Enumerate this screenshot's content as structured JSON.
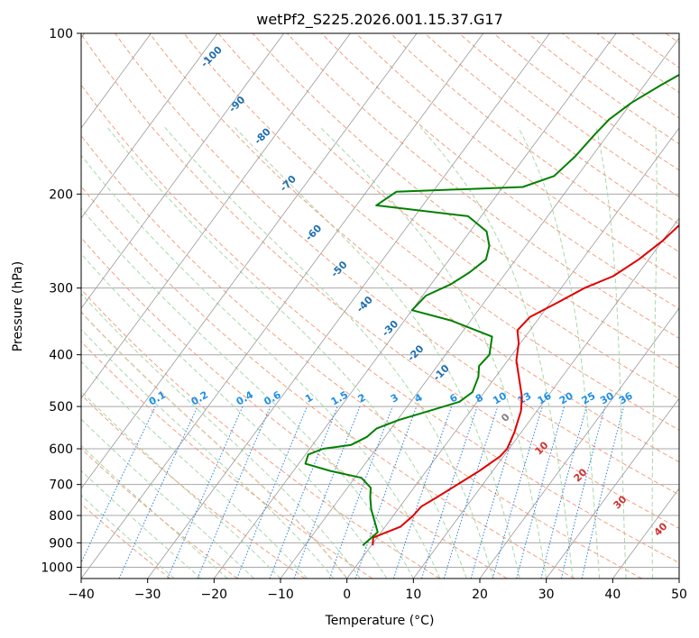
{
  "chart_data": {
    "type": "line",
    "title": "wetPf2_S225.2026.001.15.37.G17",
    "xlabel": "Temperature (°C)",
    "ylabel": "Pressure (hPa)",
    "xlim": [
      -40,
      50
    ],
    "ylim": [
      1050,
      100
    ],
    "y_scale": "log",
    "grid": true,
    "x_ticks": [
      "−40",
      "−30",
      "−20",
      "−10",
      "0",
      "10",
      "20",
      "30",
      "40",
      "50"
    ],
    "y_ticks": [
      "100",
      "200",
      "300",
      "400",
      "500",
      "600",
      "700",
      "800",
      "900",
      "1000"
    ],
    "series": [
      {
        "role": "temperature",
        "color": "#e00000",
        "points": [
          [
            0.2,
            910
          ],
          [
            -0.6,
            880
          ],
          [
            2.3,
            840
          ],
          [
            3.0,
            800
          ],
          [
            3.2,
            770
          ],
          [
            4.5,
            740
          ],
          [
            6.2,
            700
          ],
          [
            8.0,
            660
          ],
          [
            9.5,
            620
          ],
          [
            9.7,
            600
          ],
          [
            9.0,
            560
          ],
          [
            7.6,
            510
          ],
          [
            6.2,
            480
          ],
          [
            3.5,
            440
          ],
          [
            1.3,
            410
          ],
          [
            -0.3,
            380
          ],
          [
            -1.9,
            360
          ],
          [
            -1.5,
            340
          ],
          [
            1.0,
            320
          ],
          [
            3.5,
            300
          ],
          [
            6.5,
            285
          ],
          [
            8.5,
            265
          ],
          [
            10.0,
            245
          ],
          [
            11.0,
            225
          ],
          [
            11.3,
            205
          ],
          [
            10.0,
            185
          ],
          [
            8.5,
            168
          ],
          [
            7.0,
            150
          ],
          [
            6.6,
            135
          ],
          [
            7.5,
            122
          ],
          [
            9.5,
            112
          ],
          [
            12.0,
            104
          ],
          [
            13.5,
            100
          ]
        ]
      },
      {
        "role": "dewpoint",
        "color": "#008000",
        "points": [
          [
            -1.3,
            910
          ],
          [
            -1.0,
            890
          ],
          [
            -0.5,
            860
          ],
          [
            -2.2,
            820
          ],
          [
            -4.0,
            780
          ],
          [
            -5.5,
            740
          ],
          [
            -6.5,
            710
          ],
          [
            -9.0,
            680
          ],
          [
            -14.5,
            660
          ],
          [
            -19.0,
            640
          ],
          [
            -19.6,
            615
          ],
          [
            -18.0,
            600
          ],
          [
            -14.2,
            590
          ],
          [
            -12.7,
            570
          ],
          [
            -12.2,
            550
          ],
          [
            -9.8,
            530
          ],
          [
            -6.3,
            510
          ],
          [
            -2.7,
            490
          ],
          [
            -1.8,
            470
          ],
          [
            -2.6,
            440
          ],
          [
            -3.7,
            420
          ],
          [
            -3.4,
            400
          ],
          [
            -5.0,
            370
          ],
          [
            -13.0,
            345
          ],
          [
            -20.0,
            330
          ],
          [
            -19.5,
            310
          ],
          [
            -17.0,
            295
          ],
          [
            -15.5,
            280
          ],
          [
            -14.5,
            265
          ],
          [
            -15.5,
            250
          ],
          [
            -17.5,
            235
          ],
          [
            -22.0,
            220
          ],
          [
            -37.0,
            210
          ],
          [
            -35.5,
            198
          ],
          [
            -17.0,
            194
          ],
          [
            -13.5,
            185
          ],
          [
            -12.5,
            170
          ],
          [
            -12.0,
            155
          ],
          [
            -11.5,
            145
          ],
          [
            -10.0,
            135
          ],
          [
            -7.5,
            125
          ],
          [
            -4.5,
            115
          ],
          [
            -2.3,
            106
          ],
          [
            -1.0,
            100
          ]
        ]
      }
    ],
    "dry_adiabat_labels": [
      "-100",
      "-90",
      "-80",
      "-70",
      "-60",
      "-50",
      "-40",
      "-30",
      "-20",
      "-10"
    ],
    "mixing_ratio_labels": [
      "0.1",
      "0.2",
      "0.4",
      "0.6",
      "1",
      "1.5",
      "2",
      "3",
      "4",
      "6",
      "8",
      "10",
      "13",
      "16",
      "20",
      "25",
      "30",
      "36"
    ],
    "moist_adiabat_labels": [
      "0",
      "10",
      "20",
      "30",
      "40"
    ],
    "colors": {
      "isotherm": "#9a9a9a",
      "isobar": "#a8a8a8",
      "dry_adiabat": "#f2a080",
      "moist_adiabat": "#a8d8a8",
      "mixing_ratio": "#2a80d8",
      "dry_label": "#1f6fb0",
      "mix_label": "#1e8fe8",
      "moist_label": "#d03030",
      "zero_label": "#808080"
    }
  }
}
